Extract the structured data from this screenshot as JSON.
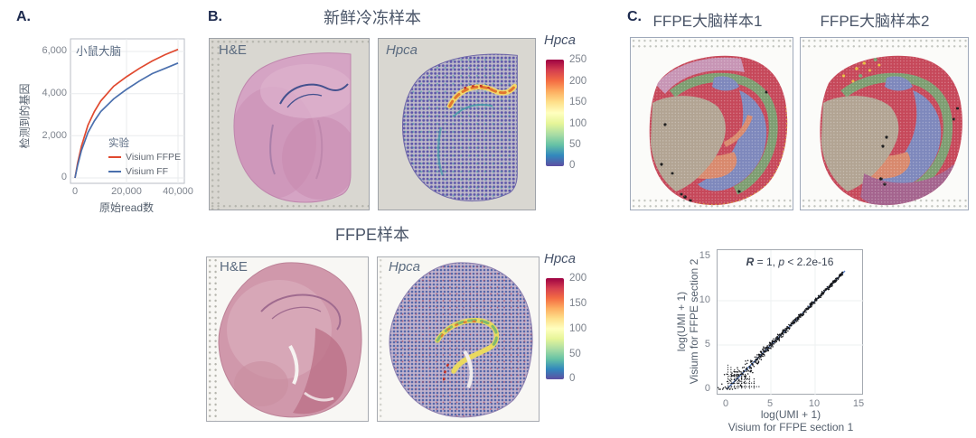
{
  "figure": {
    "panel_a": {
      "label": "A.",
      "title": "小鼠大脑",
      "y_axis_label": "检测到的基因",
      "x_axis_label": "原始read数",
      "legend_title": "实验",
      "legend": [
        {
          "name": "Visium FFPE",
          "color": "#e0492f"
        },
        {
          "name": "Visium FF",
          "color": "#4a6fad"
        }
      ],
      "y_ticks": [
        "6,000",
        "4,000",
        "2,000",
        "0"
      ],
      "x_ticks": [
        "0",
        "20,000",
        "40,000"
      ]
    },
    "panel_b": {
      "label": "B.",
      "fresh_frozen_title": "新鲜冷冻样本",
      "ffpe_title": "FFPE样本",
      "he_label": "H&E",
      "gene_label": "Hpca",
      "colorbar_fresh": {
        "label": "Hpca",
        "ticks": [
          "250",
          "200",
          "150",
          "100",
          "50",
          "0"
        ]
      },
      "colorbar_ffpe": {
        "label": "Hpca",
        "ticks": [
          "200",
          "150",
          "100",
          "50",
          "0"
        ]
      }
    },
    "panel_c": {
      "label": "C.",
      "sample1_title": "FFPE大脑样本1",
      "sample2_title": "FFPE大脑样本2",
      "scatter": {
        "annotation_r": "R",
        "annotation_r_rest": " = 1, ",
        "annotation_p": "p",
        "annotation_p_rest": " < 2.2e-16",
        "x_ticks": [
          "0",
          "5",
          "10",
          "15"
        ],
        "y_ticks": [
          "15",
          "10",
          "5",
          "0"
        ],
        "xlabel_line1": "log(UMI + 1)",
        "xlabel_line2": "Visium for FFPE section 1",
        "ylabel_line1": "log(UMI + 1)",
        "ylabel_line2": "Visium for FFPE section 2"
      }
    }
  },
  "colors": {
    "spectral_bottom_to_top": [
      "#5e4fa2",
      "#3288bd",
      "#66c2a5",
      "#abdda4",
      "#e6f598",
      "#ffffbf",
      "#fee08b",
      "#fdae61",
      "#f46d43",
      "#d53e4f",
      "#9e0142"
    ],
    "ffpe_line": "#e0492f",
    "ff_line": "#4a6fad",
    "fit_line": "#5b7fc4"
  },
  "chart_data": [
    {
      "type": "line",
      "title": "小鼠大脑",
      "xlabel": "原始read数",
      "ylabel": "检测到的基因",
      "x": [
        0,
        1000,
        2500,
        5000,
        7500,
        10000,
        15000,
        20000,
        25000,
        30000,
        35000,
        40000
      ],
      "series": [
        {
          "name": "Visium FFPE",
          "color": "#e0492f",
          "values": [
            0,
            700,
            1500,
            2500,
            3150,
            3650,
            4350,
            4800,
            5200,
            5550,
            5850,
            6100
          ]
        },
        {
          "name": "Visium FF",
          "color": "#4a6fad",
          "values": [
            0,
            600,
            1300,
            2150,
            2700,
            3150,
            3750,
            4200,
            4600,
            4950,
            5200,
            5450
          ]
        }
      ],
      "xlim": [
        0,
        42000
      ],
      "ylim": [
        0,
        6500
      ],
      "legend_title": "实验",
      "legend_position": "inside bottom-right",
      "grid": true
    },
    {
      "type": "heatmap",
      "title": "Hpca spatial expression, fresh frozen vs FFPE mouse brain",
      "colorbars": [
        {
          "sample": "新鲜冷冻样本",
          "gene": "Hpca",
          "range": [
            0,
            250
          ]
        },
        {
          "sample": "FFPE样本",
          "gene": "Hpca",
          "range": [
            0,
            200
          ]
        }
      ],
      "colormap": "Spectral (blue-purple low to dark red high)"
    },
    {
      "type": "scatter",
      "xlabel": "log(UMI + 1) Visium for FFPE section 1",
      "ylabel": "log(UMI + 1) Visium for FFPE section 2",
      "xlim": [
        0,
        15
      ],
      "ylim": [
        0,
        15
      ],
      "annotation": "R = 1, p < 2.2e-16",
      "description": "Dense black points on the y=x diagonal from (0,0) to about (13,13) with a blue linear fit line; vertical striping of discrete points below (3,3).",
      "grid": true
    }
  ]
}
